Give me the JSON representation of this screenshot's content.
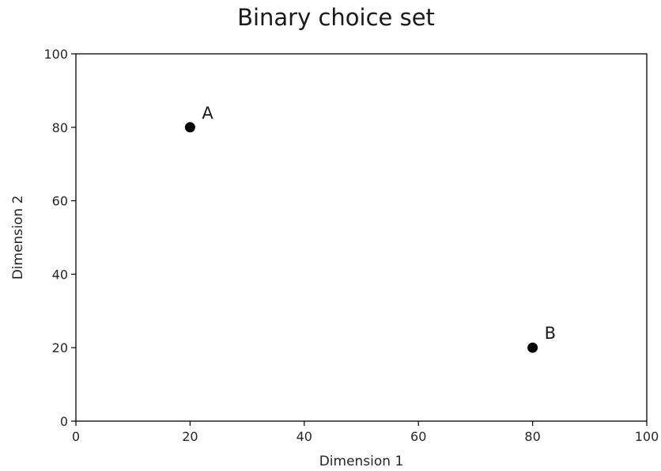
{
  "chart_data": {
    "type": "scatter",
    "title": "Binary choice set",
    "xlabel": "Dimension 1",
    "ylabel": "Dimension 2",
    "xlim": [
      0,
      100
    ],
    "ylim": [
      0,
      100
    ],
    "xticks": [
      "0",
      "20",
      "40",
      "60",
      "80",
      "100"
    ],
    "yticks": [
      "0",
      "20",
      "40",
      "60",
      "80",
      "100"
    ],
    "grid": false,
    "points": [
      {
        "label": "A",
        "x": 20,
        "y": 80
      },
      {
        "label": "B",
        "x": 80,
        "y": 20
      }
    ],
    "point_color": "#000000"
  }
}
